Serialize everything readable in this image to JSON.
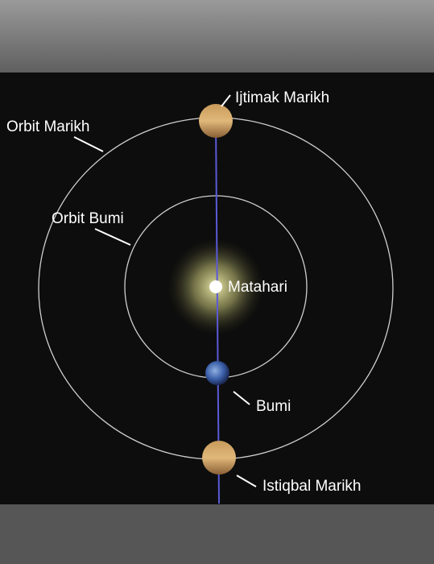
{
  "nodes": [
    {
      "label": "Ijtimak Marikh"
    },
    {
      "label": "Orbit Marikh"
    },
    {
      "label": "Orbit Bumi"
    },
    {
      "label": "Matahari"
    },
    {
      "label": "Bumi"
    },
    {
      "label": "Istiqbal Marikh"
    }
  ]
}
